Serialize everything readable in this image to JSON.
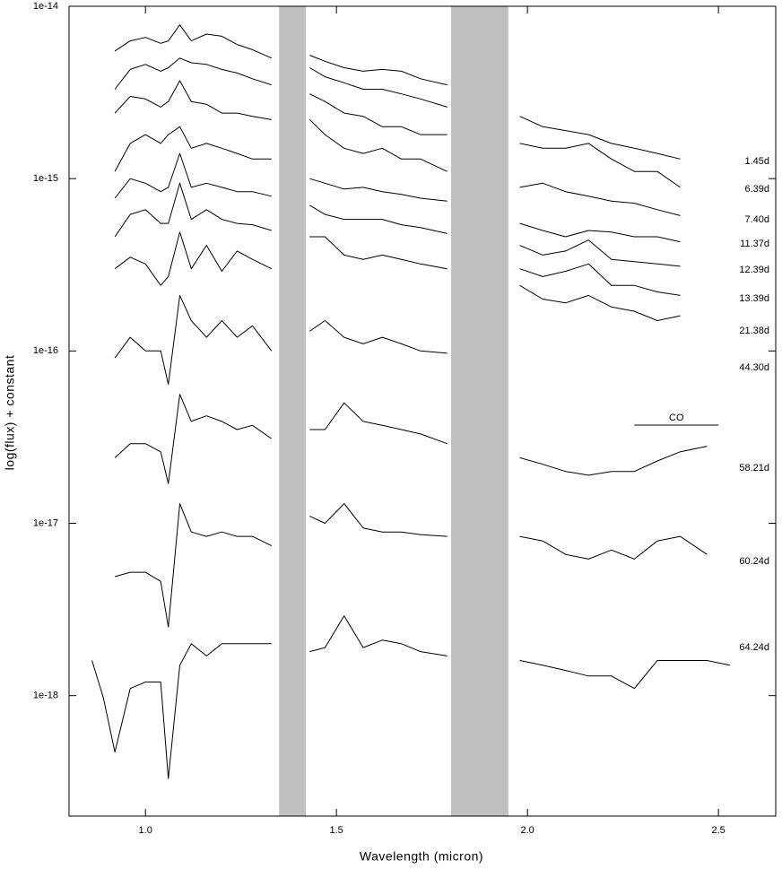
{
  "chart_data": {
    "type": "line",
    "x_label": "Wavelength (micron)",
    "y_label": "log(flux) + constant",
    "log_y": true,
    "color": "#000000",
    "shade_color": "#c0c0c0",
    "shaded_x": [
      [
        1.35,
        1.42
      ],
      [
        1.8,
        1.95
      ]
    ],
    "annotation": {
      "text": "CO",
      "x": [
        2.28,
        2.5
      ]
    },
    "xlim": [
      0.8,
      2.65
    ],
    "xticks": [
      {
        "value": 1,
        "label": "1.0"
      },
      1.5,
      {
        "value": 2,
        "label": "2.0"
      },
      2.5
    ],
    "ylim": [
      2e-19,
      1e-14
    ],
    "yticks": [
      1e-18,
      1e-17,
      1e-16,
      1e-15,
      1e-14
    ],
    "x": [
      0.86,
      0.89,
      0.92,
      0.96,
      1.0,
      1.04,
      1.06,
      1.09,
      1.12,
      1.16,
      1.2,
      1.24,
      1.28,
      1.33,
      1.38,
      1.43,
      1.47,
      1.52,
      1.57,
      1.62,
      1.67,
      1.72,
      1.79,
      1.88,
      1.98,
      2.04,
      2.1,
      2.16,
      2.22,
      2.28,
      2.34,
      2.4,
      2.47,
      2.53
    ],
    "series": [
      {
        "name": "1.45d",
        "values": [
          null,
          null,
          5.5e-15,
          6.3e-15,
          6.6e-15,
          6.1e-15,
          6.3e-15,
          7.8e-15,
          6.3e-15,
          6.9e-15,
          6.7e-15,
          6e-15,
          5.6e-15,
          5e-15,
          null,
          5.2e-15,
          4.8e-15,
          4.4e-15,
          4.2e-15,
          4.3e-15,
          4.2e-15,
          3.8e-15,
          3.5e-15,
          null,
          2.3e-15,
          2e-15,
          1.9e-15,
          1.8e-15,
          1.6e-15,
          1.5e-15,
          1.4e-15,
          1.3e-15,
          null,
          null
        ]
      },
      {
        "name": "6.39d",
        "values": [
          null,
          null,
          3.3e-15,
          4.3e-15,
          4.6e-15,
          4.2e-15,
          4.4e-15,
          5e-15,
          4.7e-15,
          4.6e-15,
          4.3e-15,
          4.1e-15,
          3.8e-15,
          3.5e-15,
          null,
          4.4e-15,
          3.9e-15,
          3.6e-15,
          3.3e-15,
          3.3e-15,
          3.1e-15,
          2.9e-15,
          2.6e-15,
          null,
          1.6e-15,
          1.5e-15,
          1.5e-15,
          1.6e-15,
          1.3e-15,
          1.1e-15,
          1.1e-15,
          8.9e-16,
          null,
          null
        ]
      },
      {
        "name": "7.40d",
        "values": [
          null,
          null,
          2.4e-15,
          3e-15,
          2.9e-15,
          2.6e-15,
          2.8e-15,
          3.7e-15,
          2.8e-15,
          2.7e-15,
          2.4e-15,
          2.4e-15,
          2.3e-15,
          2.2e-15,
          null,
          3.1e-15,
          2.8e-15,
          2.4e-15,
          2.3e-15,
          2e-15,
          2e-15,
          1.8e-15,
          1.8e-15,
          null,
          8.9e-16,
          9.4e-16,
          8.4e-16,
          7.9e-16,
          7.4e-16,
          7.2e-16,
          6.6e-16,
          6.1e-16,
          null,
          null
        ]
      },
      {
        "name": "11.37d",
        "values": [
          null,
          null,
          1.1e-15,
          1.6e-15,
          1.8e-15,
          1.6e-15,
          1.8e-15,
          2e-15,
          1.5e-15,
          1.6e-15,
          1.5e-15,
          1.4e-15,
          1.3e-15,
          1.3e-15,
          null,
          2.2e-15,
          1.8e-15,
          1.5e-15,
          1.4e-15,
          1.5e-15,
          1.3e-15,
          1.3e-15,
          1.1e-15,
          null,
          5.5e-16,
          5e-16,
          4.6e-16,
          5e-16,
          4.9e-16,
          4.6e-16,
          4.6e-16,
          4.3e-16,
          null,
          null
        ]
      },
      {
        "name": "12.39d",
        "values": [
          null,
          null,
          7.7e-16,
          1e-15,
          9.4e-16,
          8.4e-16,
          8.9e-16,
          1.4e-15,
          8.9e-16,
          9.4e-16,
          8.9e-16,
          8.4e-16,
          8.4e-16,
          7.9e-16,
          null,
          1e-15,
          9.4e-16,
          8.7e-16,
          8.9e-16,
          8.4e-16,
          8.1e-16,
          7.7e-16,
          7.4e-16,
          null,
          4.1e-16,
          3.6e-16,
          3.8e-16,
          4.4e-16,
          3.4e-16,
          3.3e-16,
          3.2e-16,
          3.1e-16,
          null,
          null
        ]
      },
      {
        "name": "13.39d",
        "values": [
          null,
          null,
          4.6e-16,
          6.2e-16,
          6.6e-16,
          5.5e-16,
          5.5e-16,
          9.4e-16,
          5.8e-16,
          6.6e-16,
          5.8e-16,
          5.5e-16,
          5.4e-16,
          5e-16,
          null,
          7e-16,
          6.2e-16,
          5.8e-16,
          5.8e-16,
          5.8e-16,
          5.4e-16,
          5.2e-16,
          4.8e-16,
          null,
          3e-16,
          2.7e-16,
          2.9e-16,
          3.2e-16,
          2.4e-16,
          2.4e-16,
          2.2e-16,
          2.1e-16,
          null,
          null
        ]
      },
      {
        "name": "21.38d",
        "values": [
          null,
          null,
          3e-16,
          3.5e-16,
          3.2e-16,
          2.4e-16,
          2.7e-16,
          4.9e-16,
          3e-16,
          4.1e-16,
          2.9e-16,
          3.8e-16,
          3.4e-16,
          3e-16,
          null,
          4.6e-16,
          4.6e-16,
          3.6e-16,
          3.4e-16,
          3.6e-16,
          3.4e-16,
          3.2e-16,
          3e-16,
          null,
          2.4e-16,
          2e-16,
          1.9e-16,
          2.1e-16,
          1.8e-16,
          1.7e-16,
          1.5e-16,
          1.6e-16,
          null,
          null
        ]
      },
      {
        "name": "44.30d",
        "values": [
          null,
          null,
          9.1e-17,
          1.2e-16,
          1e-16,
          1e-16,
          6.4e-17,
          2.1e-16,
          1.5e-16,
          1.2e-16,
          1.5e-16,
          1.2e-16,
          1.4e-16,
          1e-16,
          null,
          1.3e-16,
          1.5e-16,
          1.2e-16,
          1.1e-16,
          1.2e-16,
          1.1e-16,
          1e-16,
          9.7e-17,
          null,
          null,
          null,
          null,
          null,
          null,
          null,
          null,
          null,
          null,
          null
        ]
      },
      {
        "name": "58.21d",
        "values": [
          null,
          null,
          2.4e-17,
          2.9e-17,
          2.9e-17,
          2.6e-17,
          1.7e-17,
          5.6e-17,
          3.9e-17,
          4.2e-17,
          3.9e-17,
          3.5e-17,
          3.7e-17,
          3.1e-17,
          null,
          3.5e-17,
          3.5e-17,
          5e-17,
          3.9e-17,
          3.7e-17,
          3.5e-17,
          3.3e-17,
          2.9e-17,
          null,
          2.4e-17,
          2.2e-17,
          2e-17,
          1.9e-17,
          2e-17,
          2e-17,
          2.3e-17,
          2.6e-17,
          2.8e-17,
          null
        ]
      },
      {
        "name": "60.24d",
        "values": [
          null,
          null,
          4.9e-18,
          5.2e-18,
          5.2e-18,
          4.6e-18,
          2.5e-18,
          1.3e-17,
          8.9e-18,
          8.4e-18,
          8.9e-18,
          8.4e-18,
          8.4e-18,
          7.4e-18,
          null,
          1.1e-17,
          1e-17,
          1.3e-17,
          9.4e-18,
          8.9e-18,
          8.9e-18,
          8.6e-18,
          8.4e-18,
          null,
          8.4e-18,
          7.9e-18,
          6.6e-18,
          6.2e-18,
          7e-18,
          6.2e-18,
          7.9e-18,
          8.4e-18,
          6.6e-18,
          null
        ]
      },
      {
        "name": "64.24d",
        "values": [
          1.6e-18,
          9.7e-19,
          4.7e-19,
          1.1e-18,
          1.2e-18,
          1.2e-18,
          3.3e-19,
          1.5e-18,
          2e-18,
          1.7e-18,
          2e-18,
          2e-18,
          2e-18,
          2e-18,
          null,
          1.8e-18,
          1.9e-18,
          2.9e-18,
          1.9e-18,
          2.1e-18,
          2e-18,
          1.8e-18,
          1.7e-18,
          null,
          1.6e-18,
          1.5e-18,
          1.4e-18,
          1.3e-18,
          1.3e-18,
          1.1e-18,
          1.6e-18,
          1.6e-18,
          1.6e-18,
          1.5e-18
        ]
      }
    ]
  }
}
